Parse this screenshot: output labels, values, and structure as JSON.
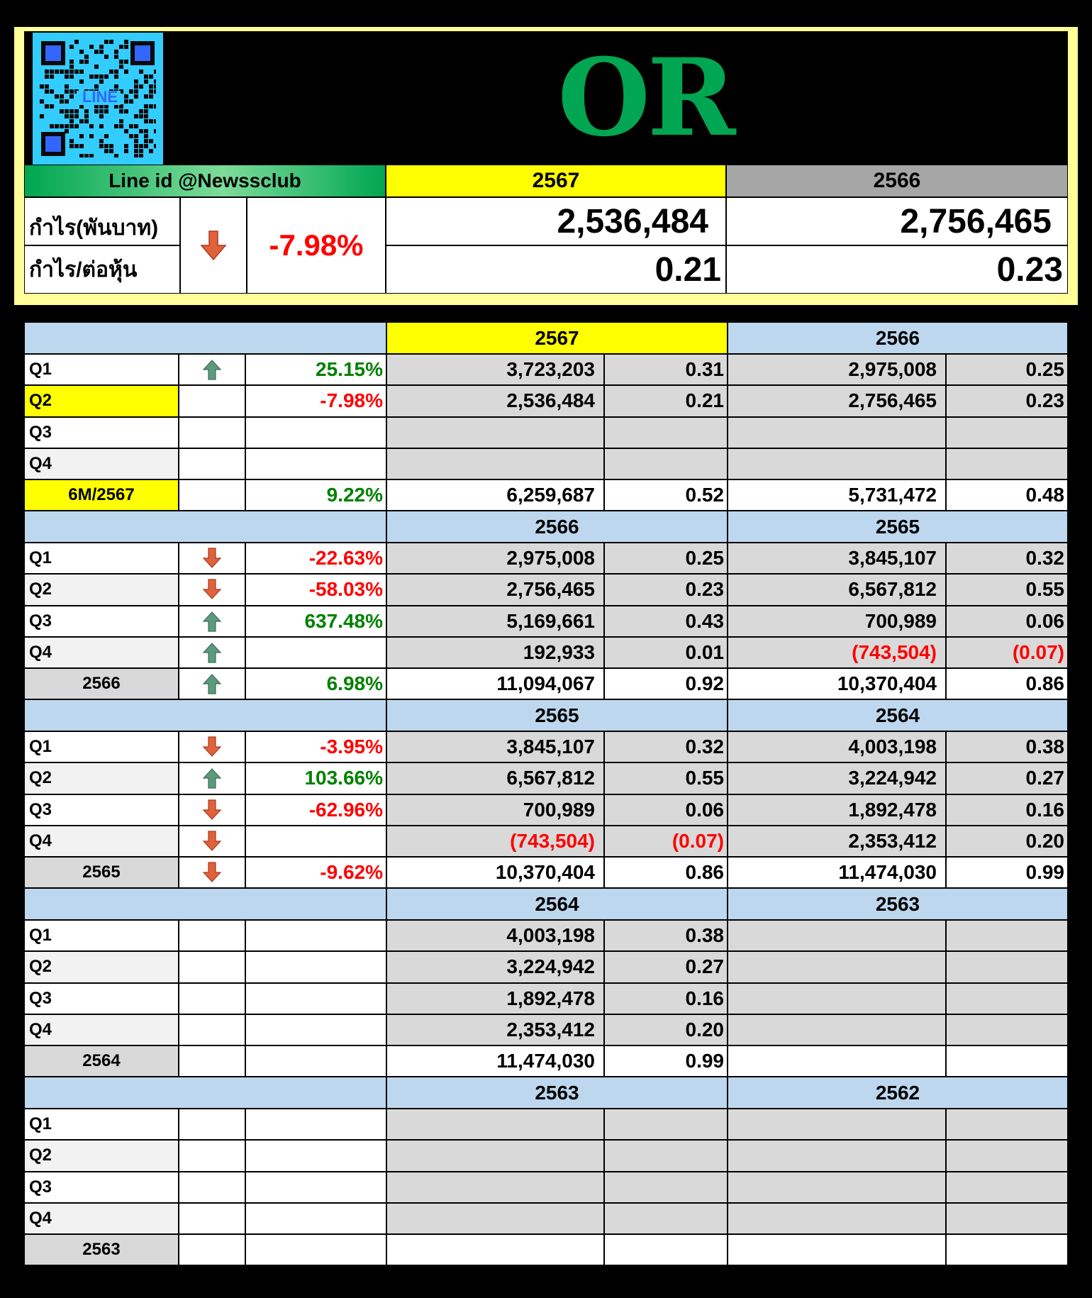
{
  "header": {
    "ticker": "OR",
    "qr_label": "LINE",
    "line_id": "Line id @Newssclub",
    "year_current": "2567",
    "year_previous": "2566",
    "profit_label": "กำไร(พันบาท)",
    "eps_label": "กำไร/ต่อหุ้น",
    "change_pct": "-7.98%",
    "change_direction": "down",
    "profit_current": "2,536,484",
    "profit_previous": "2,756,465",
    "eps_current": "0.21",
    "eps_previous": "0.23"
  },
  "colors": {
    "ticker": "#00a651",
    "header_yellow": "#ffff00",
    "header_gray": "#a6a6a6",
    "section_blue": "#bdd7ee",
    "value_gray": "#d9d9d9",
    "label_gray": "#f2f2f2",
    "total_label_gray": "#d9d9d9",
    "panel_border": "#ffff99",
    "line_green": "#00b050",
    "up_arrow": "#5b9a7d",
    "down_arrow": "#e0623c",
    "negative": "#ff0000",
    "positive": "#008000"
  },
  "sections": [
    {
      "year_a": "2567",
      "year_b": "2566",
      "highlight_a": true,
      "rows": [
        {
          "label": "Q1",
          "arrow": "up",
          "pct": "25.15%",
          "pct_sign": "pos",
          "a_profit": "3,723,203",
          "a_eps": "0.31",
          "b_profit": "2,975,008",
          "b_eps": "0.25",
          "highlight": false,
          "total": false
        },
        {
          "label": "Q2",
          "arrow": "",
          "pct": "-7.98%",
          "pct_sign": "neg",
          "a_profit": "2,536,484",
          "a_eps": "0.21",
          "b_profit": "2,756,465",
          "b_eps": "0.23",
          "highlight": true,
          "total": false
        },
        {
          "label": "Q3",
          "arrow": "",
          "pct": "",
          "pct_sign": "",
          "a_profit": "",
          "a_eps": "",
          "b_profit": "",
          "b_eps": "",
          "highlight": false,
          "total": false
        },
        {
          "label": "Q4",
          "arrow": "",
          "pct": "",
          "pct_sign": "",
          "a_profit": "",
          "a_eps": "",
          "b_profit": "",
          "b_eps": "",
          "highlight": false,
          "total": false
        },
        {
          "label": "6M/2567",
          "arrow": "",
          "pct": "9.22%",
          "pct_sign": "pos",
          "a_profit": "6,259,687",
          "a_eps": "0.52",
          "b_profit": "5,731,472",
          "b_eps": "0.48",
          "highlight": true,
          "total": true
        }
      ]
    },
    {
      "year_a": "2566",
      "year_b": "2565",
      "highlight_a": false,
      "rows": [
        {
          "label": "Q1",
          "arrow": "down",
          "pct": "-22.63%",
          "pct_sign": "neg",
          "a_profit": "2,975,008",
          "a_eps": "0.25",
          "b_profit": "3,845,107",
          "b_eps": "0.32",
          "highlight": false,
          "total": false
        },
        {
          "label": "Q2",
          "arrow": "down",
          "pct": "-58.03%",
          "pct_sign": "neg",
          "a_profit": "2,756,465",
          "a_eps": "0.23",
          "b_profit": "6,567,812",
          "b_eps": "0.55",
          "highlight": false,
          "total": false
        },
        {
          "label": "Q3",
          "arrow": "up",
          "pct": "637.48%",
          "pct_sign": "pos",
          "a_profit": "5,169,661",
          "a_eps": "0.43",
          "b_profit": "700,989",
          "b_eps": "0.06",
          "highlight": false,
          "total": false
        },
        {
          "label": "Q4",
          "arrow": "up",
          "pct": "",
          "pct_sign": "",
          "a_profit": "192,933",
          "a_eps": "0.01",
          "b_profit": "(743,504)",
          "b_eps": "(0.07)",
          "b_negative": true,
          "highlight": false,
          "total": false
        },
        {
          "label": "2566",
          "arrow": "up",
          "pct": "6.98%",
          "pct_sign": "pos",
          "a_profit": "11,094,067",
          "a_eps": "0.92",
          "b_profit": "10,370,404",
          "b_eps": "0.86",
          "highlight": false,
          "total": true
        }
      ]
    },
    {
      "year_a": "2565",
      "year_b": "2564",
      "highlight_a": false,
      "rows": [
        {
          "label": "Q1",
          "arrow": "down",
          "pct": "-3.95%",
          "pct_sign": "neg",
          "a_profit": "3,845,107",
          "a_eps": "0.32",
          "b_profit": "4,003,198",
          "b_eps": "0.38",
          "highlight": false,
          "total": false
        },
        {
          "label": "Q2",
          "arrow": "up",
          "pct": "103.66%",
          "pct_sign": "pos",
          "a_profit": "6,567,812",
          "a_eps": "0.55",
          "b_profit": "3,224,942",
          "b_eps": "0.27",
          "highlight": false,
          "total": false
        },
        {
          "label": "Q3",
          "arrow": "down",
          "pct": "-62.96%",
          "pct_sign": "neg",
          "a_profit": "700,989",
          "a_eps": "0.06",
          "b_profit": "1,892,478",
          "b_eps": "0.16",
          "highlight": false,
          "total": false
        },
        {
          "label": "Q4",
          "arrow": "down",
          "pct": "",
          "pct_sign": "",
          "a_profit": "(743,504)",
          "a_eps": "(0.07)",
          "a_negative": true,
          "b_profit": "2,353,412",
          "b_eps": "0.20",
          "highlight": false,
          "total": false
        },
        {
          "label": "2565",
          "arrow": "down",
          "pct": "-9.62%",
          "pct_sign": "neg",
          "a_profit": "10,370,404",
          "a_eps": "0.86",
          "b_profit": "11,474,030",
          "b_eps": "0.99",
          "highlight": false,
          "total": true
        }
      ]
    },
    {
      "year_a": "2564",
      "year_b": "2563",
      "highlight_a": false,
      "rows": [
        {
          "label": "Q1",
          "arrow": "",
          "pct": "",
          "pct_sign": "",
          "a_profit": "4,003,198",
          "a_eps": "0.38",
          "b_profit": "",
          "b_eps": "",
          "highlight": false,
          "total": false
        },
        {
          "label": "Q2",
          "arrow": "",
          "pct": "",
          "pct_sign": "",
          "a_profit": "3,224,942",
          "a_eps": "0.27",
          "b_profit": "",
          "b_eps": "",
          "highlight": false,
          "total": false
        },
        {
          "label": "Q3",
          "arrow": "",
          "pct": "",
          "pct_sign": "",
          "a_profit": "1,892,478",
          "a_eps": "0.16",
          "b_profit": "",
          "b_eps": "",
          "highlight": false,
          "total": false
        },
        {
          "label": "Q4",
          "arrow": "",
          "pct": "",
          "pct_sign": "",
          "a_profit": "2,353,412",
          "a_eps": "0.20",
          "b_profit": "",
          "b_eps": "",
          "highlight": false,
          "total": false
        },
        {
          "label": "2564",
          "arrow": "",
          "pct": "",
          "pct_sign": "",
          "a_profit": "11,474,030",
          "a_eps": "0.99",
          "b_profit": "",
          "b_eps": "",
          "highlight": false,
          "total": true
        }
      ]
    },
    {
      "year_a": "2563",
      "year_b": "2562",
      "highlight_a": false,
      "rows": [
        {
          "label": "Q1",
          "arrow": "",
          "pct": "",
          "pct_sign": "",
          "a_profit": "",
          "a_eps": "",
          "b_profit": "",
          "b_eps": "",
          "highlight": false,
          "total": false
        },
        {
          "label": "Q2",
          "arrow": "",
          "pct": "",
          "pct_sign": "",
          "a_profit": "",
          "a_eps": "",
          "b_profit": "",
          "b_eps": "",
          "highlight": false,
          "total": false
        },
        {
          "label": "Q3",
          "arrow": "",
          "pct": "",
          "pct_sign": "",
          "a_profit": "",
          "a_eps": "",
          "b_profit": "",
          "b_eps": "",
          "highlight": false,
          "total": false
        },
        {
          "label": "Q4",
          "arrow": "",
          "pct": "",
          "pct_sign": "",
          "a_profit": "",
          "a_eps": "",
          "b_profit": "",
          "b_eps": "",
          "highlight": false,
          "total": false
        },
        {
          "label": "2563",
          "arrow": "",
          "pct": "",
          "pct_sign": "",
          "a_profit": "",
          "a_eps": "",
          "b_profit": "",
          "b_eps": "",
          "highlight": false,
          "total": true
        }
      ]
    }
  ]
}
